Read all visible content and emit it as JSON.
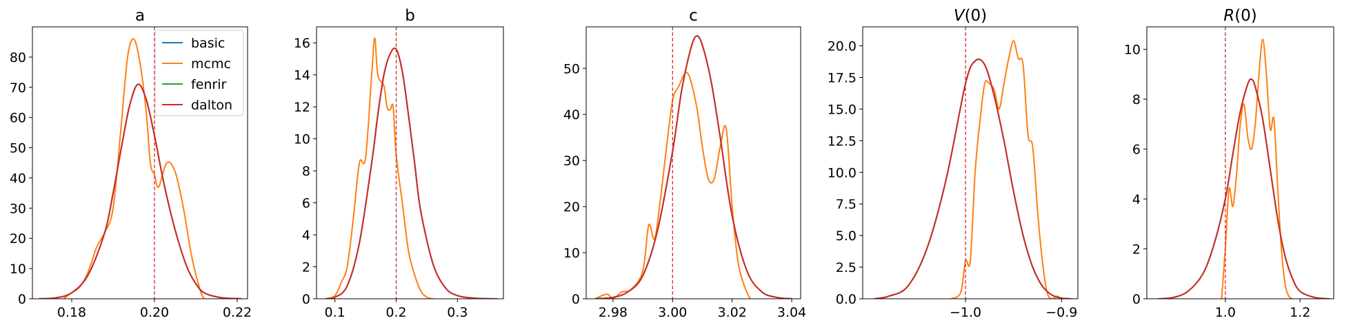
{
  "figure": {
    "legend": {
      "placement": "upper right of first panel",
      "items": [
        {
          "label": "basic",
          "color": "#1f77b4"
        },
        {
          "label": "mcmc",
          "color": "#ff7f0e"
        },
        {
          "label": "fenrir",
          "color": "#2ca02c"
        },
        {
          "label": "dalton",
          "color": "#d62728"
        }
      ]
    },
    "reference_line_color": "#d62728"
  },
  "chart_data": [
    {
      "type": "line",
      "title": "a",
      "xlim": [
        0.1705,
        0.2225
      ],
      "ylim": [
        0,
        90
      ],
      "x_ticks": [
        0.18,
        0.2,
        0.22
      ],
      "x_tick_labels": [
        "0.18",
        "0.20",
        "0.22"
      ],
      "y_ticks": [
        0,
        10,
        20,
        30,
        40,
        50,
        60,
        70,
        80
      ],
      "y_tick_labels": [
        "0",
        "10",
        "20",
        "30",
        "40",
        "50",
        "60",
        "70",
        "80"
      ],
      "reference_x": 0.2,
      "series": [
        {
          "name": "basic",
          "color": "#1f77b4",
          "x": [
            0.172,
            0.176,
            0.18,
            0.184,
            0.188,
            0.19,
            0.192,
            0.194,
            0.196,
            0.198,
            0.2,
            0.202,
            0.204,
            0.206,
            0.208,
            0.21,
            0.212,
            0.216,
            0.221
          ],
          "y": [
            0,
            0.3,
            2,
            8,
            22,
            35,
            50,
            64,
            71,
            66,
            54,
            40,
            28,
            18,
            10,
            5,
            2,
            0.4,
            0
          ]
        },
        {
          "name": "mcmc",
          "color": "#ff7f0e",
          "x": [
            0.178,
            0.18,
            0.182,
            0.184,
            0.186,
            0.188,
            0.19,
            0.192,
            0.1935,
            0.195,
            0.1965,
            0.198,
            0.199,
            0.2,
            0.201,
            0.203,
            0.205,
            0.207,
            0.209,
            0.211,
            0.212
          ],
          "y": [
            0,
            2,
            4,
            9,
            17,
            22,
            30,
            58,
            80,
            86,
            78,
            62,
            45,
            41,
            37,
            45,
            42,
            30,
            14,
            3,
            0
          ]
        },
        {
          "name": "fenrir",
          "color": "#2ca02c",
          "x": [
            0.172,
            0.176,
            0.18,
            0.184,
            0.188,
            0.19,
            0.192,
            0.194,
            0.196,
            0.198,
            0.2,
            0.202,
            0.204,
            0.206,
            0.208,
            0.21,
            0.212,
            0.216,
            0.221
          ],
          "y": [
            0,
            0.3,
            2,
            8,
            22,
            35,
            50,
            64,
            71,
            66,
            54,
            40,
            28,
            18,
            10,
            5,
            2,
            0.4,
            0
          ]
        },
        {
          "name": "dalton",
          "color": "#d62728",
          "x": [
            0.172,
            0.176,
            0.18,
            0.184,
            0.188,
            0.19,
            0.192,
            0.194,
            0.196,
            0.198,
            0.2,
            0.202,
            0.204,
            0.206,
            0.208,
            0.21,
            0.212,
            0.216,
            0.221
          ],
          "y": [
            0,
            0.3,
            2,
            8,
            22,
            35,
            50,
            64,
            71,
            66,
            54,
            40,
            28,
            18,
            10,
            5,
            2,
            0.4,
            0
          ]
        }
      ]
    },
    {
      "type": "line",
      "title": "b",
      "xlim": [
        0.07,
        0.375
      ],
      "ylim": [
        0,
        17
      ],
      "x_ticks": [
        0.1,
        0.2,
        0.3
      ],
      "x_tick_labels": [
        "0.1",
        "0.2",
        "0.3"
      ],
      "y_ticks": [
        0,
        2,
        4,
        6,
        8,
        10,
        12,
        14,
        16
      ],
      "y_tick_labels": [
        "0",
        "2",
        "4",
        "6",
        "8",
        "10",
        "12",
        "14",
        "16"
      ],
      "reference_x": 0.2,
      "series": [
        {
          "name": "basic",
          "color": "#1f77b4",
          "x": [
            0.085,
            0.1,
            0.12,
            0.14,
            0.16,
            0.17,
            0.18,
            0.19,
            0.2,
            0.21,
            0.22,
            0.23,
            0.24,
            0.26,
            0.28,
            0.3,
            0.33,
            0.365
          ],
          "y": [
            0,
            0.1,
            0.8,
            3.5,
            8.5,
            11.5,
            14,
            15.3,
            15.6,
            14.2,
            11.5,
            8.5,
            5.5,
            2.2,
            0.7,
            0.2,
            0.03,
            0
          ]
        },
        {
          "name": "mcmc",
          "color": "#ff7f0e",
          "x": [
            0.085,
            0.1,
            0.11,
            0.12,
            0.13,
            0.14,
            0.15,
            0.16,
            0.165,
            0.17,
            0.18,
            0.185,
            0.19,
            0.195,
            0.2,
            0.21,
            0.22,
            0.23,
            0.24,
            0.25,
            0.26
          ],
          "y": [
            0,
            0.2,
            1,
            2,
            5,
            8.5,
            8.8,
            14,
            16.3,
            14,
            13.3,
            12,
            11.8,
            12,
            9,
            6,
            3,
            1.5,
            0.5,
            0.1,
            0
          ]
        },
        {
          "name": "fenrir",
          "color": "#2ca02c",
          "x": [
            0.085,
            0.1,
            0.12,
            0.14,
            0.16,
            0.17,
            0.18,
            0.19,
            0.2,
            0.21,
            0.22,
            0.23,
            0.24,
            0.26,
            0.28,
            0.3,
            0.33,
            0.365
          ],
          "y": [
            0,
            0.1,
            0.8,
            3.5,
            8.5,
            11.5,
            14,
            15.3,
            15.6,
            14.2,
            11.5,
            8.5,
            5.5,
            2.2,
            0.7,
            0.2,
            0.03,
            0
          ]
        },
        {
          "name": "dalton",
          "color": "#d62728",
          "x": [
            0.085,
            0.1,
            0.12,
            0.14,
            0.16,
            0.17,
            0.18,
            0.19,
            0.2,
            0.21,
            0.22,
            0.23,
            0.24,
            0.26,
            0.28,
            0.3,
            0.33,
            0.365
          ],
          "y": [
            0,
            0.1,
            0.8,
            3.5,
            8.5,
            11.5,
            14,
            15.3,
            15.6,
            14.2,
            11.5,
            8.5,
            5.5,
            2.2,
            0.7,
            0.2,
            0.03,
            0
          ]
        }
      ]
    },
    {
      "type": "line",
      "title": "c",
      "xlim": [
        2.971,
        3.043
      ],
      "ylim": [
        0,
        59
      ],
      "x_ticks": [
        2.98,
        3.0,
        3.02,
        3.04
      ],
      "x_tick_labels": [
        "2.98",
        "3.00",
        "3.02",
        "3.04"
      ],
      "y_ticks": [
        0,
        10,
        20,
        30,
        40,
        50
      ],
      "y_tick_labels": [
        "0",
        "10",
        "20",
        "30",
        "40",
        "50"
      ],
      "reference_x": 3.0,
      "series": [
        {
          "name": "basic",
          "color": "#1f77b4",
          "x": [
            2.974,
            2.98,
            2.985,
            2.99,
            2.995,
            3.0,
            3.003,
            3.006,
            3.008,
            3.01,
            3.013,
            3.016,
            3.02,
            3.025,
            3.03,
            3.035,
            3.04
          ],
          "y": [
            0,
            0.3,
            1.5,
            5,
            15,
            32,
            45,
            54,
            57,
            55,
            47,
            35,
            18,
            6,
            1.5,
            0.3,
            0
          ]
        },
        {
          "name": "mcmc",
          "color": "#ff7f0e",
          "x": [
            2.974,
            2.978,
            2.98,
            2.983,
            2.986,
            2.99,
            2.992,
            2.994,
            2.996,
            2.998,
            3.0,
            3.002,
            3.005,
            3.008,
            3.01,
            3.012,
            3.014,
            3.016,
            3.018,
            3.02,
            3.022,
            3.024,
            3.026
          ],
          "y": [
            0,
            1,
            0,
            1.5,
            2,
            6,
            16,
            13,
            22,
            33,
            43,
            46,
            49,
            42,
            33,
            26,
            26,
            33,
            37,
            20,
            8,
            3,
            0
          ]
        },
        {
          "name": "fenrir",
          "color": "#2ca02c",
          "x": [
            2.974,
            2.98,
            2.985,
            2.99,
            2.995,
            3.0,
            3.003,
            3.006,
            3.008,
            3.01,
            3.013,
            3.016,
            3.02,
            3.025,
            3.03,
            3.035,
            3.04
          ],
          "y": [
            0,
            0.3,
            1.5,
            5,
            15,
            32,
            45,
            54,
            57,
            55,
            47,
            35,
            18,
            6,
            1.5,
            0.3,
            0
          ]
        },
        {
          "name": "dalton",
          "color": "#d62728",
          "x": [
            2.974,
            2.98,
            2.985,
            2.99,
            2.995,
            3.0,
            3.003,
            3.006,
            3.008,
            3.01,
            3.013,
            3.016,
            3.02,
            3.025,
            3.03,
            3.035,
            3.04
          ],
          "y": [
            0,
            0.3,
            1.5,
            5,
            15,
            32,
            45,
            54,
            57,
            55,
            47,
            35,
            18,
            6,
            1.5,
            0.3,
            0
          ]
        }
      ]
    },
    {
      "type": "line",
      "title": "V(0)",
      "xlim": [
        -1.107,
        -0.883
      ],
      "ylim": [
        0,
        21.5
      ],
      "x_ticks": [
        -1.0,
        -0.9
      ],
      "x_tick_labels": [
        "−1.0",
        "−0.9"
      ],
      "y_ticks": [
        0,
        2.5,
        5,
        7.5,
        10,
        12.5,
        15,
        17.5,
        20
      ],
      "y_tick_labels": [
        "0.0",
        "2.5",
        "5.0",
        "7.5",
        "10.0",
        "12.5",
        "15.0",
        "17.5",
        "20.0"
      ],
      "reference_x": -1.0,
      "series": [
        {
          "name": "basic",
          "color": "#1f77b4",
          "x": [
            -1.095,
            -1.08,
            -1.06,
            -1.04,
            -1.02,
            -1.0,
            -0.99,
            -0.98,
            -0.97,
            -0.96,
            -0.95,
            -0.94,
            -0.93,
            -0.92,
            -0.91,
            -0.9,
            -0.89
          ],
          "y": [
            0,
            0.2,
            1,
            4,
            9.5,
            17,
            18.8,
            18.5,
            16,
            12.5,
            8.5,
            5,
            2.5,
            1,
            0.3,
            0.05,
            0
          ]
        },
        {
          "name": "mcmc",
          "color": "#ff7f0e",
          "x": [
            -1.015,
            -1.005,
            -1.0,
            -0.995,
            -0.99,
            -0.985,
            -0.98,
            -0.975,
            -0.97,
            -0.965,
            -0.96,
            -0.955,
            -0.95,
            -0.945,
            -0.94,
            -0.935,
            -0.93,
            -0.925,
            -0.92,
            -0.915,
            -0.91,
            -0.905,
            -0.9
          ],
          "y": [
            0,
            0.5,
            3,
            3,
            10,
            14,
            17,
            17,
            16.5,
            15,
            17,
            19,
            20.4,
            19,
            18.5,
            13,
            12,
            7,
            3,
            0.5,
            0,
            0.2,
            0
          ]
        },
        {
          "name": "fenrir",
          "color": "#2ca02c",
          "x": [
            -1.095,
            -1.08,
            -1.06,
            -1.04,
            -1.02,
            -1.0,
            -0.99,
            -0.98,
            -0.97,
            -0.96,
            -0.95,
            -0.94,
            -0.93,
            -0.92,
            -0.91,
            -0.9,
            -0.89
          ],
          "y": [
            0,
            0.2,
            1,
            4,
            9.5,
            17,
            18.8,
            18.5,
            16,
            12.5,
            8.5,
            5,
            2.5,
            1,
            0.3,
            0.05,
            0
          ]
        },
        {
          "name": "dalton",
          "color": "#d62728",
          "x": [
            -1.095,
            -1.08,
            -1.06,
            -1.04,
            -1.02,
            -1.0,
            -0.99,
            -0.98,
            -0.97,
            -0.96,
            -0.95,
            -0.94,
            -0.93,
            -0.92,
            -0.91,
            -0.9,
            -0.89
          ],
          "y": [
            0,
            0.2,
            1,
            4,
            9.5,
            17,
            18.8,
            18.5,
            16,
            12.5,
            8.5,
            5,
            2.5,
            1,
            0.3,
            0.05,
            0
          ]
        }
      ]
    },
    {
      "type": "line",
      "title": "R(0)",
      "xlim": [
        0.79,
        1.29
      ],
      "ylim": [
        0,
        10.9
      ],
      "x_ticks": [
        1.0,
        1.2
      ],
      "x_tick_labels": [
        "1.0",
        "1.2"
      ],
      "y_ticks": [
        0,
        2,
        4,
        6,
        8,
        10
      ],
      "y_tick_labels": [
        "0",
        "2",
        "4",
        "6",
        "8",
        "10"
      ],
      "reference_x": 1.0,
      "series": [
        {
          "name": "basic",
          "color": "#1f77b4",
          "x": [
            0.82,
            0.86,
            0.9,
            0.94,
            0.97,
            1.0,
            1.02,
            1.04,
            1.06,
            1.07,
            1.08,
            1.1,
            1.12,
            1.14,
            1.16,
            1.18,
            1.2,
            1.24,
            1.28
          ],
          "y": [
            0,
            0.05,
            0.3,
            1,
            2.2,
            4,
            5.8,
            7.5,
            8.6,
            8.8,
            8.5,
            7.2,
            5.2,
            3.2,
            1.7,
            0.8,
            0.3,
            0.05,
            0
          ]
        },
        {
          "name": "mcmc",
          "color": "#ff7f0e",
          "x": [
            0.99,
            1.0,
            1.01,
            1.02,
            1.03,
            1.04,
            1.05,
            1.06,
            1.07,
            1.08,
            1.09,
            1.1,
            1.11,
            1.12,
            1.13,
            1.14,
            1.15,
            1.16,
            1.17,
            1.18
          ],
          "y": [
            0,
            2,
            4.4,
            3.7,
            5,
            7,
            7.8,
            6.5,
            6,
            7,
            9,
            10.4,
            9,
            6.8,
            7.2,
            4.5,
            2,
            0.6,
            0.1,
            0
          ]
        },
        {
          "name": "fenrir",
          "color": "#2ca02c",
          "x": [
            0.82,
            0.86,
            0.9,
            0.94,
            0.97,
            1.0,
            1.02,
            1.04,
            1.06,
            1.07,
            1.08,
            1.1,
            1.12,
            1.14,
            1.16,
            1.18,
            1.2,
            1.24,
            1.28
          ],
          "y": [
            0,
            0.05,
            0.3,
            1,
            2.2,
            4,
            5.8,
            7.5,
            8.6,
            8.8,
            8.5,
            7.2,
            5.2,
            3.2,
            1.7,
            0.8,
            0.3,
            0.05,
            0
          ]
        },
        {
          "name": "dalton",
          "color": "#d62728",
          "x": [
            0.82,
            0.86,
            0.9,
            0.94,
            0.97,
            1.0,
            1.02,
            1.04,
            1.06,
            1.07,
            1.08,
            1.1,
            1.12,
            1.14,
            1.16,
            1.18,
            1.2,
            1.24,
            1.28
          ],
          "y": [
            0,
            0.05,
            0.3,
            1,
            2.2,
            4,
            5.8,
            7.5,
            8.6,
            8.8,
            8.5,
            7.2,
            5.2,
            3.2,
            1.7,
            0.8,
            0.3,
            0.05,
            0
          ]
        }
      ]
    }
  ]
}
